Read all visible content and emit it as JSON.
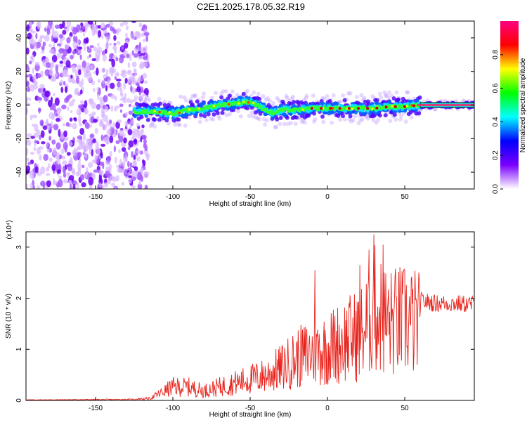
{
  "title": "C2E1.2025.178.05.32.R19",
  "chart_data": [
    {
      "type": "heatmap",
      "xlabel": "Height of straight line (km)",
      "ylabel": "Frequency (Hz)",
      "xlim": [
        -195,
        95
      ],
      "ylim": [
        -50,
        50
      ],
      "xticks": [
        -150,
        -100,
        -50,
        0,
        50
      ],
      "yticks": [
        -40,
        -20,
        0,
        20,
        40
      ],
      "colorbar": {
        "label": "Normalized spectral amplitude",
        "range": [
          0,
          1
        ],
        "ticks": [
          "0.0",
          "0.2",
          "0.4",
          "0.6",
          "0.8"
        ],
        "colormap": [
          "#ffffff",
          "#7a00ff",
          "#0000ff",
          "#00ffff",
          "#00ff00",
          "#ffff00",
          "#ff0000",
          "#ff0080"
        ]
      },
      "center_trace": {
        "x": [
          -120,
          -110,
          -100,
          -90,
          -80,
          -70,
          -60,
          -50,
          -40,
          -35,
          -30,
          -20,
          -10,
          0,
          10,
          20,
          30,
          40,
          50,
          60,
          70,
          80,
          95
        ],
        "y": [
          -4,
          -4,
          -5,
          -3,
          -2,
          0,
          1,
          2,
          -3,
          -5,
          -3,
          -3,
          -2,
          -2,
          -2,
          -2,
          -2,
          -1,
          -1,
          0,
          0,
          0,
          0
        ]
      },
      "noise_region_x": [
        -195,
        -120
      ]
    },
    {
      "type": "line",
      "xlabel": "Height of straight line (km)",
      "ylabel": "SNR (10 * v/v)",
      "y_multiplier": "(x10⁴)",
      "xlim": [
        -195,
        95
      ],
      "ylim": [
        0,
        3.3
      ],
      "xticks": [
        -150,
        -100,
        -50,
        0,
        50
      ],
      "yticks": [
        0,
        1,
        2,
        3
      ],
      "series": [
        {
          "color": "#e8231c",
          "envelope": {
            "x": [
              -195,
              -125,
              -115,
              -100,
              -90,
              -80,
              -70,
              -60,
              -50,
              -40,
              -30,
              -20,
              -10,
              0,
              10,
              20,
              25,
              30,
              40,
              50,
              60,
              70,
              80,
              95
            ],
            "y": [
              0.01,
              0.02,
              0.05,
              0.35,
              0.35,
              0.25,
              0.35,
              0.45,
              0.55,
              0.65,
              0.85,
              1.1,
              1.25,
              1.35,
              1.55,
              1.7,
              1.9,
              2.4,
              2.0,
              2.1,
              1.95,
              1.9,
              1.9,
              1.88
            ]
          },
          "peaks": [
            {
              "x": -8,
              "y": 2.55
            },
            {
              "x": 21,
              "y": 2.65
            },
            {
              "x": 27,
              "y": 2.95
            },
            {
              "x": 30,
              "y": 3.25
            },
            {
              "x": 36,
              "y": 3.05
            },
            {
              "x": 49,
              "y": 2.45
            }
          ]
        }
      ]
    }
  ]
}
